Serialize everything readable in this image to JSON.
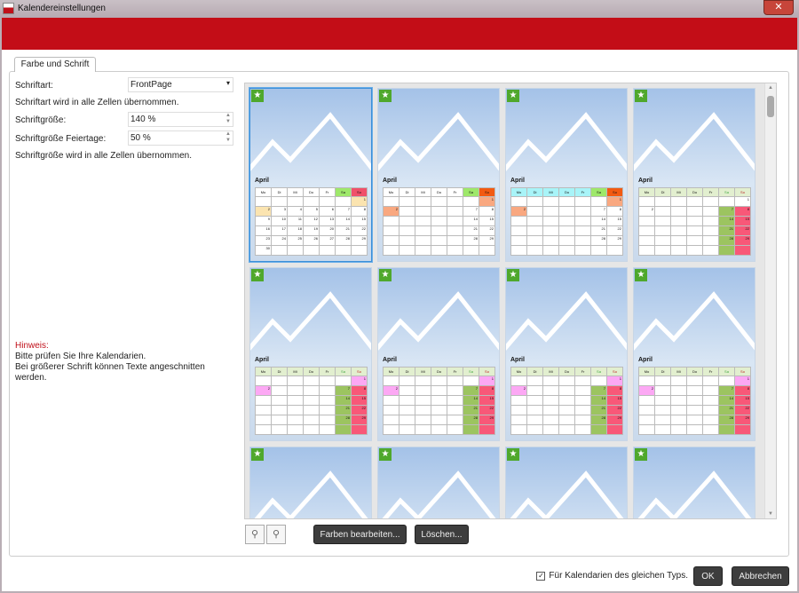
{
  "window": {
    "title": "Kalendereinstellungen",
    "close": "✕"
  },
  "tab": "Farbe und Schrift",
  "form": {
    "font_label": "Schriftart:",
    "font_value": "FrontPage",
    "font_note": "Schriftart wird in alle Zellen übernommen.",
    "size_label": "Schriftgröße:",
    "size_value": "140 %",
    "holiday_size_label": "Schriftgröße Feiertage:",
    "holiday_size_value": "50 %",
    "size_note": "Schriftgröße wird in alle Zellen übernommen."
  },
  "hint": {
    "title": "Hinweis:",
    "line1": "Bitte prüfen Sie Ihre Kalendarien.",
    "line2": "Bei größerer Schrift können Texte angeschnitten werden."
  },
  "calendar": {
    "month": "April",
    "days": [
      "Mo",
      "Di",
      "Mi",
      "Do",
      "Fr",
      "Sa",
      "So"
    ],
    "weeks": [
      [
        "",
        "",
        "",
        "",
        "",
        "",
        "1"
      ],
      [
        "2",
        "3",
        "4",
        "5",
        "6",
        "7",
        "8"
      ],
      [
        "9",
        "10",
        "11",
        "12",
        "13",
        "14",
        "15"
      ],
      [
        "16",
        "17",
        "18",
        "19",
        "20",
        "21",
        "22"
      ],
      [
        "23",
        "24",
        "25",
        "26",
        "27",
        "28",
        "29"
      ],
      [
        "30",
        "",
        "",
        "",
        "",
        "",
        ""
      ]
    ]
  },
  "themes": [
    {
      "head": "#ffffff",
      "sa": "#9ee86a",
      "so": "#f0506a",
      "hl": "#fbe4b0",
      "colSa": "",
      "colSo": "",
      "all": true
    },
    {
      "head": "#ffffff",
      "sa": "#9ee86a",
      "so": "#f25a12",
      "hl": "#f9a880",
      "colSa": "",
      "colSo": "",
      "all": false
    },
    {
      "head": "#a8f4f8",
      "sa": "#9ee86a",
      "so": "#f25a12",
      "hl": "#f9a880",
      "colSa": "",
      "colSo": "",
      "all": false
    },
    {
      "head": "#e2efcf",
      "sa": "#e2efcf",
      "so": "#e2efcf",
      "hl": "",
      "colSa": "#9cc460",
      "colSo": "#f85878",
      "all": false
    },
    {
      "head": "#e2efcf",
      "sa": "#e2efcf",
      "so": "#e2efcf",
      "hl": "#fca8f4",
      "colSa": "#9cc460",
      "colSo": "#f85878",
      "all": false
    },
    {
      "head": "#e2efcf",
      "sa": "#e2efcf",
      "so": "#e2efcf",
      "hl": "#fca8f4",
      "colSa": "#9cc460",
      "colSo": "#f85878",
      "all": false
    },
    {
      "head": "#e2efcf",
      "sa": "#e2efcf",
      "so": "#e2efcf",
      "hl": "#fca8f4",
      "colSa": "#9cc460",
      "colSo": "#f85878",
      "all": false
    },
    {
      "head": "#e2efcf",
      "sa": "#e2efcf",
      "so": "#e2efcf",
      "hl": "#fca8f4",
      "colSa": "#9cc460",
      "colSo": "#f85878",
      "all": false
    },
    {
      "head": "#ffffff"
    },
    {
      "head": "#ffffff"
    },
    {
      "head": "#ffffff"
    },
    {
      "head": "#ffffff"
    }
  ],
  "buttons": {
    "edit_colors": "Farben bearbeiten...",
    "delete": "Löschen...",
    "ok": "OK",
    "cancel": "Abbrechen"
  },
  "same_type": {
    "label": "Für Kalendarien des gleichen Typs.",
    "checked": true,
    "mark": "✓"
  },
  "icons": {
    "star": "★",
    "zoom_out": "⚲",
    "zoom_in": "⚲",
    "dropdown": "▾",
    "up": "▲",
    "down": "▼"
  }
}
